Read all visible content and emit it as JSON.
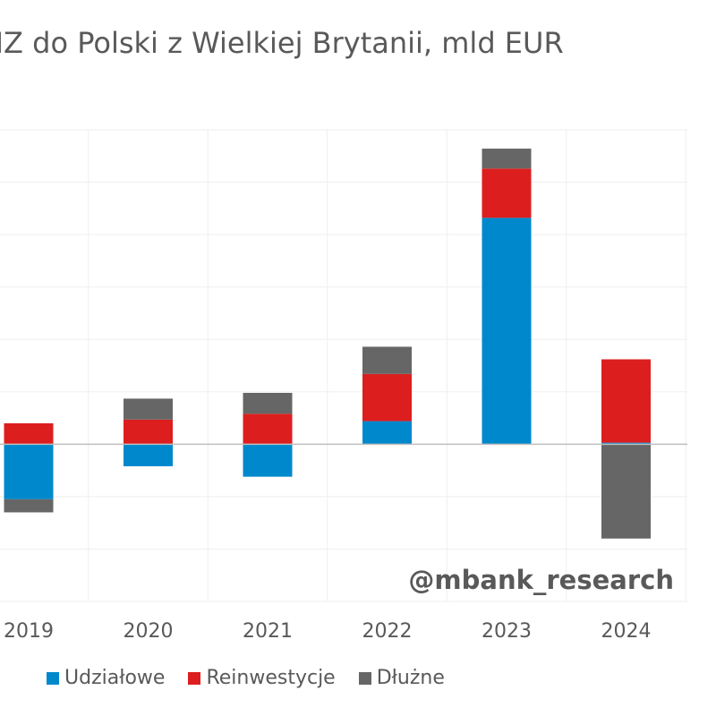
{
  "chart_data": {
    "type": "bar",
    "stacked": true,
    "title": "w BIZ do Polski z Wielkiej Brytanii, mld EUR",
    "xlabel": "",
    "ylabel": "",
    "categories": [
      "2019",
      "2020",
      "2021",
      "2022",
      "2023",
      "2024"
    ],
    "series": [
      {
        "name": "Udziałowe",
        "color": "#0088CC",
        "values": [
          -1.05,
          -0.42,
          -0.62,
          0.44,
          4.32,
          0.03
        ]
      },
      {
        "name": "Reinwestycje",
        "color": "#DD1E1E",
        "values": [
          0.4,
          0.47,
          0.58,
          0.9,
          0.94,
          1.59
        ]
      },
      {
        "name": "Dłużne",
        "color": "#666666",
        "values": [
          -0.25,
          0.4,
          0.4,
          0.52,
          0.38,
          -1.8
        ]
      }
    ],
    "ylim": [
      -3,
      6
    ],
    "grid": true,
    "legend": "bottom",
    "watermark": "@mbank_research"
  }
}
